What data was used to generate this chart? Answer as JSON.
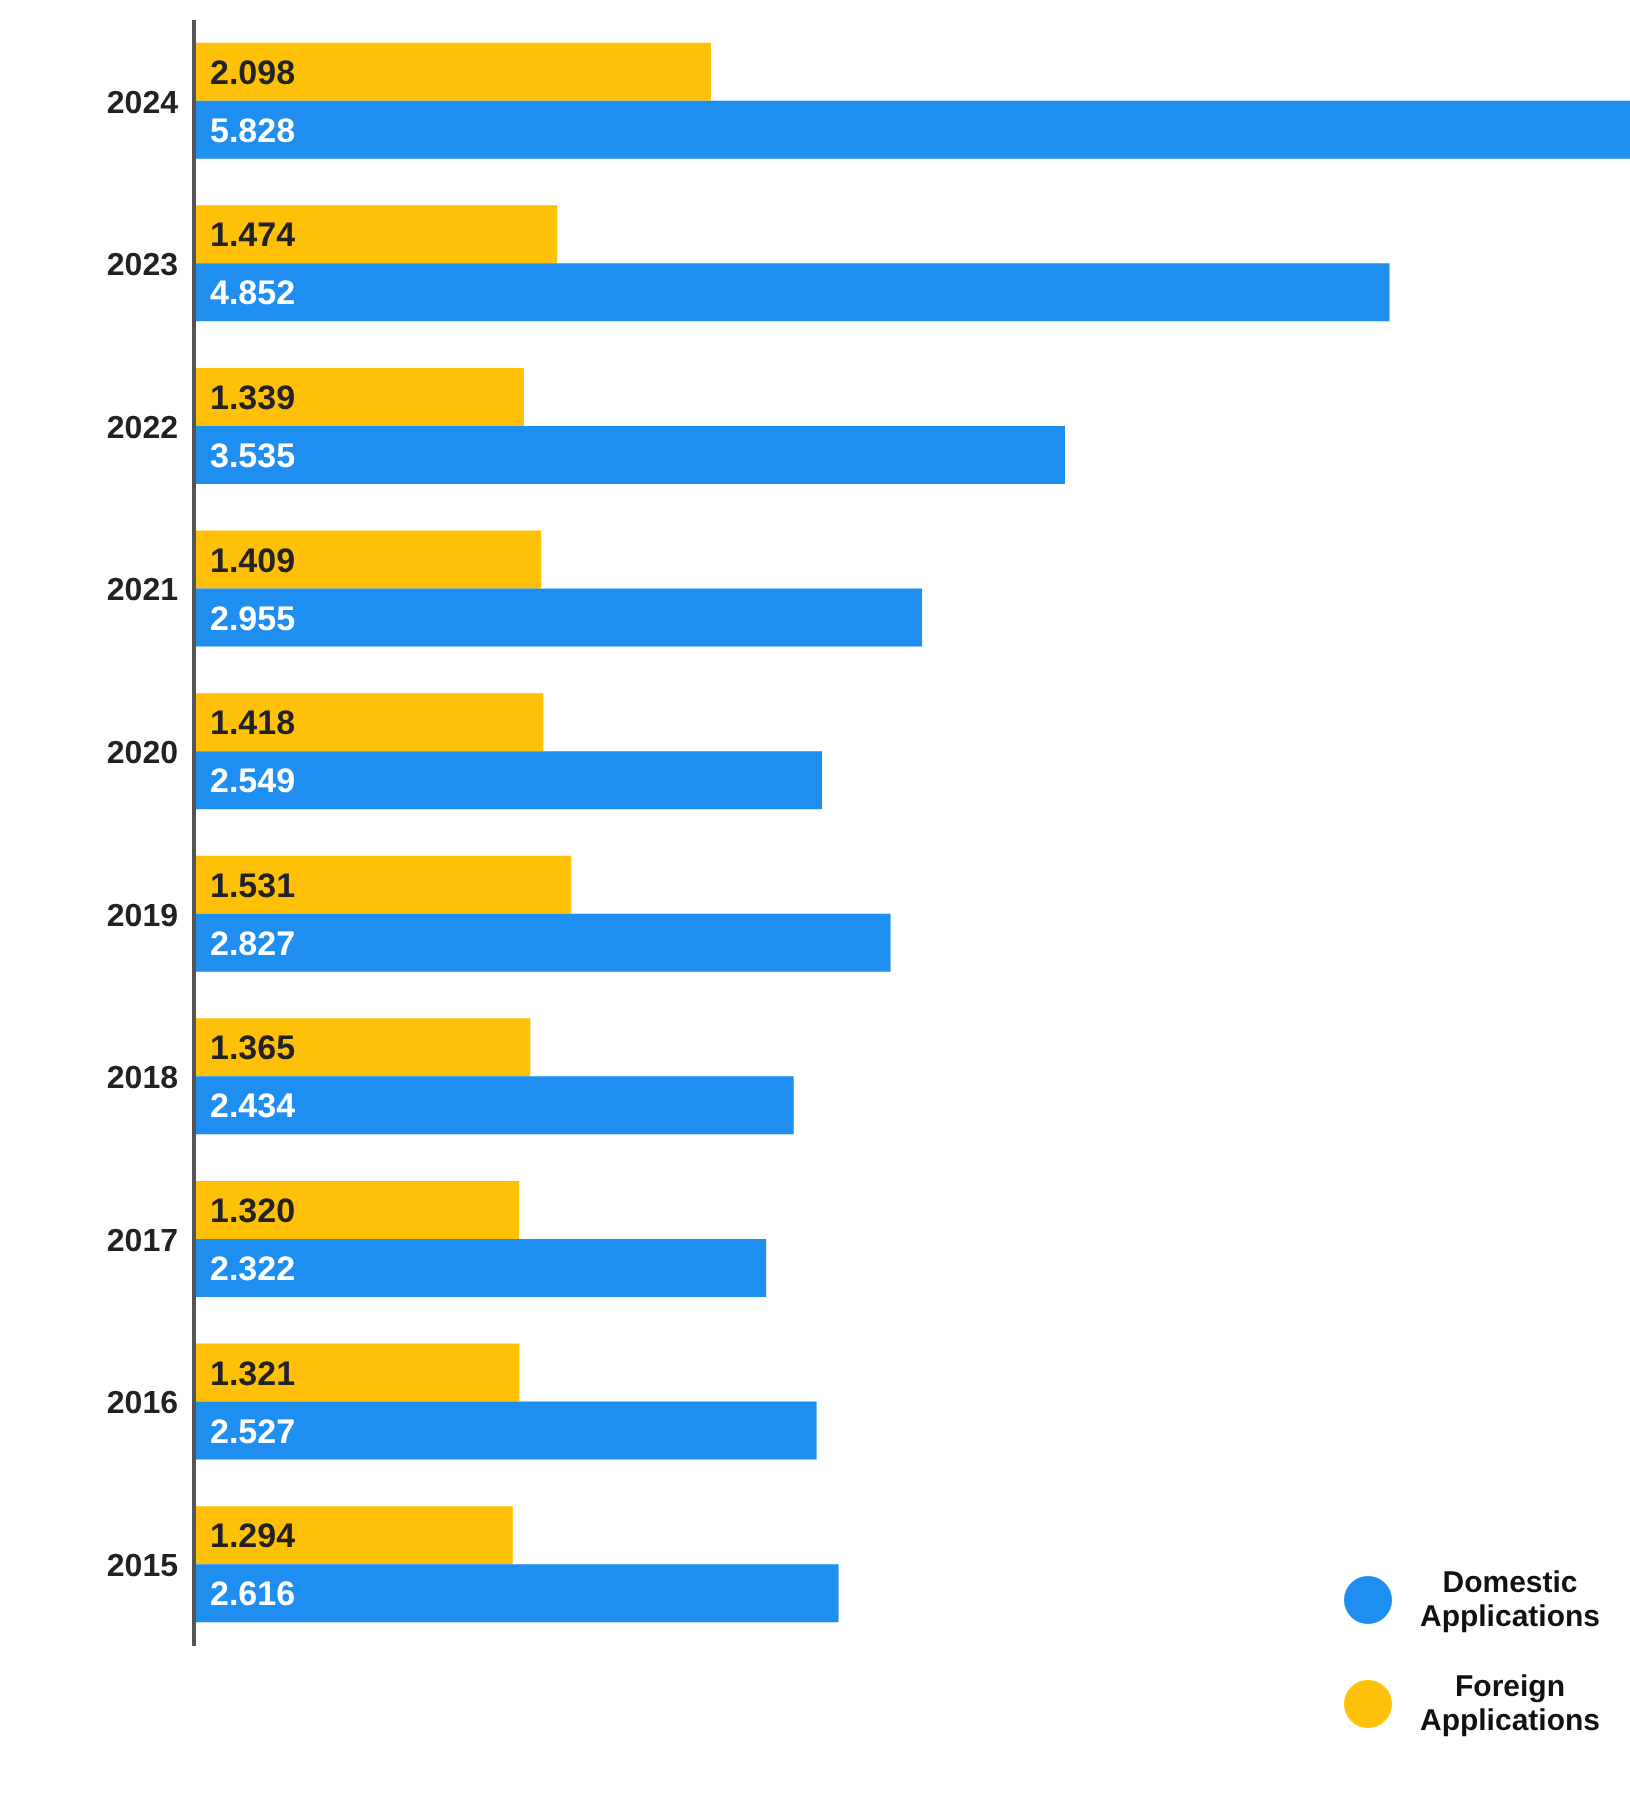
{
  "chart_data": {
    "type": "bar",
    "orientation": "horizontal",
    "categories": [
      "2024",
      "2023",
      "2022",
      "2021",
      "2020",
      "2019",
      "2018",
      "2017",
      "2016",
      "2015"
    ],
    "series": [
      {
        "name": "Domestic Applications",
        "color": "#1e8ff0",
        "values": [
          5.828,
          4.852,
          3.535,
          2.955,
          2.549,
          2.827,
          2.434,
          2.322,
          2.527,
          2.616
        ],
        "value_labels": [
          "5.828",
          "4.852",
          "3.535",
          "2.955",
          "2.549",
          "2.827",
          "2.434",
          "2.322",
          "2.527",
          "2.616"
        ]
      },
      {
        "name": "Foreign Applications",
        "color": "#ffc107",
        "values": [
          2.098,
          1.474,
          1.339,
          1.409,
          1.418,
          1.531,
          1.365,
          1.32,
          1.321,
          1.294
        ],
        "value_labels": [
          "2.098",
          "1.474",
          "1.339",
          "1.409",
          "1.418",
          "1.531",
          "1.365",
          "1.320",
          "1.321",
          "1.294"
        ]
      }
    ],
    "legend": "bottom right",
    "grid": false,
    "tick_labels": "y"
  }
}
